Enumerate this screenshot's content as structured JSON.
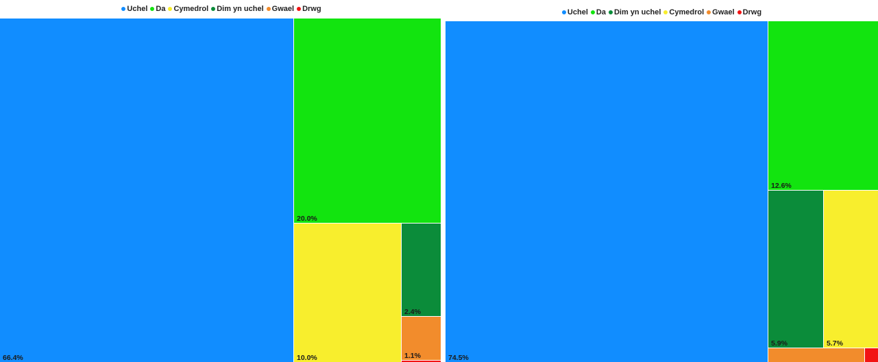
{
  "chart_data": [
    {
      "type": "treemap",
      "legend": [
        "Uchel",
        "Da",
        "Cymedrol",
        "Dim yn uchel",
        "Gwael",
        "Drwg"
      ],
      "categories": [
        "Uchel",
        "Da",
        "Cymedrol",
        "Dim yn uchel",
        "Gwael",
        "Drwg"
      ],
      "values": [
        66.4,
        20.0,
        10.0,
        2.4,
        1.1,
        0.1
      ],
      "labels": [
        "66.4%",
        "20.0%",
        "10.0%",
        "2.4%",
        "1.1%",
        ""
      ],
      "colors": [
        "#118dff",
        "#12e40f",
        "#f8ee2d",
        "#0b8c3a",
        "#f28c2c",
        "#f21313"
      ],
      "legend_placement": "top-center"
    },
    {
      "type": "treemap",
      "legend": [
        "Uchel",
        "Da",
        "Dim yn uchel",
        "Cymedrol",
        "Gwael",
        "Drwg"
      ],
      "categories": [
        "Uchel",
        "Da",
        "Dim yn uchel",
        "Cymedrol",
        "Gwael",
        "Drwg"
      ],
      "values": [
        74.5,
        12.6,
        5.9,
        5.7,
        1.0,
        0.3
      ],
      "labels": [
        "74.5%",
        "12.6%",
        "5.9%",
        "5.7%",
        "",
        ""
      ],
      "colors": [
        "#118dff",
        "#12e40f",
        "#0b8c3a",
        "#f8ee2d",
        "#f28c2c",
        "#f21313"
      ],
      "legend_placement": "top-center"
    }
  ]
}
